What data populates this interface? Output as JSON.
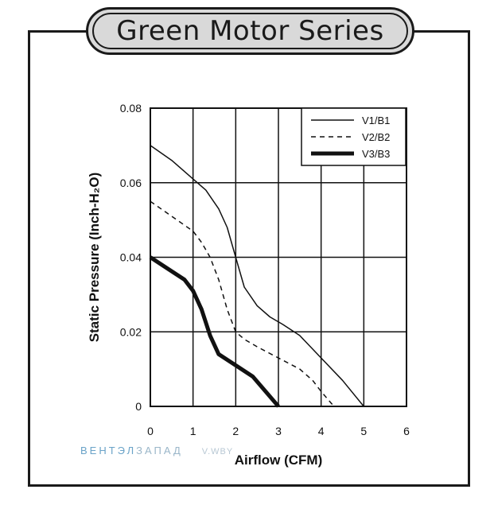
{
  "title": "Green Motor Series",
  "watermark": {
    "part_a": "ВЕНТЭЛ",
    "part_b": "ЗАПАД",
    "part_c": "V.WBY"
  },
  "chart_data": {
    "type": "line",
    "title": "Green Motor Series",
    "xlabel": "Airflow (CFM)",
    "ylabel": "Static Pressure (Inch-H₂O)",
    "xlim": [
      0,
      6
    ],
    "ylim": [
      0,
      0.08
    ],
    "x_ticks": [
      "0",
      "1",
      "2",
      "3",
      "4",
      "5",
      "6"
    ],
    "y_ticks": [
      "0",
      "0.02",
      "0.04",
      "0.06",
      "0.08"
    ],
    "grid": true,
    "legend_position": "top-right",
    "series": [
      {
        "name": "V1/B1",
        "style": "solid-thin",
        "x": [
          0,
          0.5,
          1.0,
          1.3,
          1.6,
          1.8,
          2.0,
          2.2,
          2.5,
          2.8,
          3.1,
          3.5,
          4.0,
          4.5,
          5.0
        ],
        "y": [
          0.07,
          0.066,
          0.061,
          0.058,
          0.053,
          0.048,
          0.04,
          0.032,
          0.027,
          0.024,
          0.022,
          0.019,
          0.013,
          0.007,
          0.0
        ]
      },
      {
        "name": "V2/B2",
        "style": "dashed",
        "x": [
          0,
          0.5,
          1.0,
          1.2,
          1.4,
          1.6,
          1.8,
          2.0,
          2.2,
          2.5,
          3.0,
          3.5,
          3.8,
          4.0,
          4.3
        ],
        "y": [
          0.055,
          0.051,
          0.047,
          0.044,
          0.04,
          0.034,
          0.026,
          0.02,
          0.018,
          0.016,
          0.013,
          0.01,
          0.007,
          0.004,
          0.0
        ]
      },
      {
        "name": "V3/B3",
        "style": "solid-thick",
        "x": [
          0,
          0.4,
          0.8,
          1.0,
          1.2,
          1.4,
          1.6,
          2.0,
          2.4,
          2.7,
          3.0
        ],
        "y": [
          0.04,
          0.037,
          0.034,
          0.031,
          0.026,
          0.019,
          0.014,
          0.011,
          0.008,
          0.004,
          0.0
        ]
      }
    ]
  }
}
